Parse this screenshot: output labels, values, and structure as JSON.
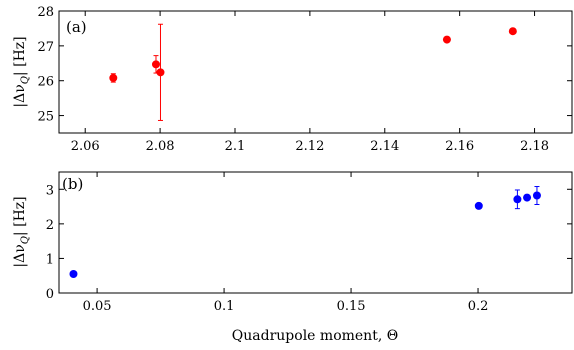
{
  "chart_data": [
    {
      "type": "scatter",
      "panel_label": "(a)",
      "ylabel_main": "|Δν",
      "ylabel_sub": "Q",
      "ylabel_unit": "| [Hz]",
      "xlabel": "",
      "xlim": [
        2.053,
        2.19
      ],
      "ylim": [
        24.5,
        28
      ],
      "xticks": [
        2.06,
        2.08,
        2.1,
        2.12,
        2.14,
        2.16,
        2.18
      ],
      "xtick_labels": [
        "2.06",
        "2.08",
        "2.1",
        "2.12",
        "2.14",
        "2.16",
        "2.18"
      ],
      "yticks": [
        25,
        26,
        27,
        28
      ],
      "ytick_labels": [
        "25",
        "26",
        "27",
        "28"
      ],
      "color": "#ff0000",
      "points": [
        {
          "x": 2.0675,
          "y": 26.08,
          "err": 0.12
        },
        {
          "x": 2.0789,
          "y": 26.47,
          "err": 0.25
        },
        {
          "x": 2.0801,
          "y": 26.24,
          "err": 1.38
        },
        {
          "x": 2.1566,
          "y": 27.18,
          "err": 0.0
        },
        {
          "x": 2.1742,
          "y": 27.42,
          "err": 0.0
        }
      ]
    },
    {
      "type": "scatter",
      "panel_label": "(b)",
      "ylabel_main": "|Δν",
      "ylabel_sub": "Q",
      "ylabel_unit": "| [Hz]",
      "xlabel": "Quadrupole moment, Θ",
      "xlim": [
        0.035,
        0.237
      ],
      "ylim": [
        0,
        3.5
      ],
      "xticks": [
        0.05,
        0.1,
        0.15,
        0.2
      ],
      "xtick_labels": [
        "0.05",
        "0.1",
        "0.15",
        "0.2"
      ],
      "yticks": [
        0,
        1,
        2,
        3
      ],
      "ytick_labels": [
        "0",
        "1",
        "2",
        "3"
      ],
      "color": "#0000ff",
      "points": [
        {
          "x": 0.0407,
          "y": 0.55,
          "err": 0.0
        },
        {
          "x": 0.2003,
          "y": 2.52,
          "err": 0.0
        },
        {
          "x": 0.2155,
          "y": 2.71,
          "err": 0.27
        },
        {
          "x": 0.2193,
          "y": 2.76,
          "err": 0.0
        },
        {
          "x": 0.2232,
          "y": 2.82,
          "err": 0.26
        }
      ]
    }
  ]
}
